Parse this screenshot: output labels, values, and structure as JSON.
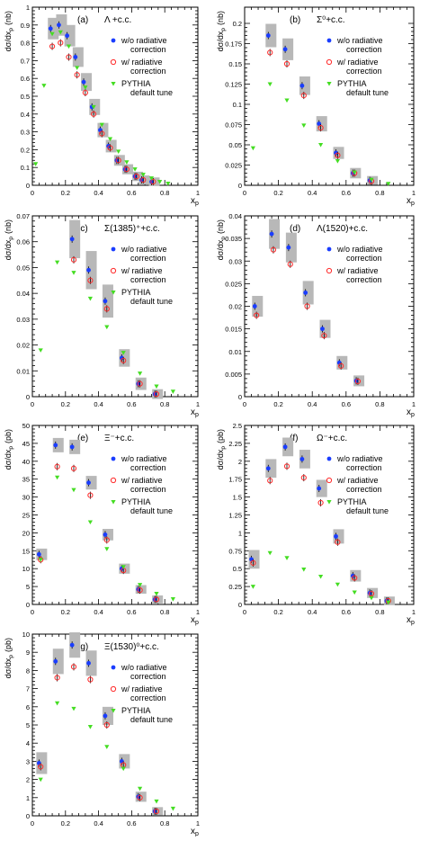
{
  "colors": {
    "without_rad": "#1a3dff",
    "with_rad": "#ff2a2a",
    "pythia": "#44dd22",
    "band": "#b8b8b8"
  },
  "chart_data": [
    {
      "type": "scatter",
      "label": "(a)",
      "title": "Λ +c.c.",
      "ylabel": "dσ/dx",
      "ysub": "p",
      "yunit": "(nb)",
      "xlabel": "x",
      "xsub": "p",
      "xlim": [
        0,
        1
      ],
      "ylim": [
        0,
        1.0
      ],
      "yticks": [
        "0",
        "0.1",
        "0.2",
        "0.3",
        "0.4",
        "0.5",
        "0.6",
        "0.7",
        "0.8",
        "0.9",
        "1"
      ],
      "ytick_values": [
        0,
        0.1,
        0.2,
        0.3,
        0.4,
        0.5,
        0.6,
        0.7,
        0.8,
        0.9,
        1.0
      ],
      "xticks": [
        "0",
        "0.2",
        "0.4",
        "0.6",
        "0.8",
        "1"
      ],
      "xtick_values": [
        0,
        0.2,
        0.4,
        0.6,
        0.8,
        1.0
      ],
      "series": [
        {
          "name": "w/o radiative correction",
          "style": "blue",
          "x": [
            0.11,
            0.16,
            0.21,
            0.26,
            0.31,
            0.36,
            0.41,
            0.46,
            0.51,
            0.56,
            0.62,
            0.66,
            0.72
          ],
          "y": [
            0.88,
            0.9,
            0.84,
            0.72,
            0.58,
            0.44,
            0.31,
            0.22,
            0.14,
            0.09,
            0.05,
            0.03,
            0.02
          ],
          "band": [
            0.04,
            0.04,
            0.04,
            0.035,
            0.03,
            0.025,
            0.02,
            0.015,
            0.01,
            0.008,
            0.006,
            0.005,
            0.004
          ]
        },
        {
          "name": "w/ radiative correction",
          "style": "red",
          "x": [
            0.12,
            0.17,
            0.22,
            0.27,
            0.32,
            0.37,
            0.42,
            0.47,
            0.52,
            0.57,
            0.63,
            0.67,
            0.73
          ],
          "y": [
            0.78,
            0.8,
            0.72,
            0.62,
            0.52,
            0.4,
            0.29,
            0.21,
            0.14,
            0.09,
            0.05,
            0.03,
            0.02
          ]
        },
        {
          "name": "PYTHIA default tune",
          "style": "green",
          "x": [
            0.02,
            0.07,
            0.12,
            0.17,
            0.22,
            0.27,
            0.32,
            0.37,
            0.42,
            0.47,
            0.52,
            0.57,
            0.62,
            0.67,
            0.72,
            0.77,
            0.82
          ],
          "y": [
            0.12,
            0.56,
            0.85,
            0.86,
            0.78,
            0.66,
            0.55,
            0.44,
            0.34,
            0.26,
            0.19,
            0.13,
            0.09,
            0.06,
            0.04,
            0.02,
            0.01
          ]
        }
      ],
      "legend": [
        "w/o radiative",
        "correction",
        "w/ radiative",
        "correction",
        "PYTHIA",
        "default tune"
      ]
    },
    {
      "type": "scatter",
      "label": "(b)",
      "title": "Σ⁰+c.c.",
      "ylabel": "dσ/dx",
      "ysub": "p",
      "yunit": "(nb)",
      "xlabel": "x",
      "xsub": "p",
      "xlim": [
        0,
        1
      ],
      "ylim": [
        0,
        0.22
      ],
      "yticks": [
        "0",
        "0.025",
        "0.05",
        "0.075",
        "0.1",
        "0.125",
        "0.15",
        "0.175",
        "0.2"
      ],
      "ytick_values": [
        0,
        0.025,
        0.05,
        0.075,
        0.1,
        0.125,
        0.15,
        0.175,
        0.2
      ],
      "xticks": [
        "0",
        "0.2",
        "0.4",
        "0.6",
        "0.8",
        "1"
      ],
      "xtick_values": [
        0,
        0.2,
        0.4,
        0.6,
        0.8,
        1.0
      ],
      "series": [
        {
          "name": "w/o radiative correction",
          "style": "blue",
          "x": [
            0.14,
            0.24,
            0.34,
            0.44,
            0.54,
            0.64,
            0.74
          ],
          "y": [
            0.185,
            0.168,
            0.123,
            0.076,
            0.04,
            0.015,
            0.006
          ],
          "band": [
            0.01,
            0.009,
            0.007,
            0.005,
            0.003,
            0.002,
            0.001
          ]
        },
        {
          "name": "w/ radiative correction",
          "style": "red",
          "x": [
            0.15,
            0.25,
            0.35,
            0.45,
            0.55,
            0.65,
            0.75
          ],
          "y": [
            0.164,
            0.15,
            0.111,
            0.071,
            0.037,
            0.015,
            0.005
          ]
        },
        {
          "name": "PYTHIA default tune",
          "style": "green",
          "x": [
            0.05,
            0.15,
            0.25,
            0.35,
            0.45,
            0.55,
            0.65,
            0.75,
            0.85
          ],
          "y": [
            0.046,
            0.125,
            0.105,
            0.074,
            0.05,
            0.03,
            0.016,
            0.007,
            0.002
          ]
        }
      ],
      "legend": [
        "w/o radiative",
        "correction",
        "w/ radiative",
        "correction",
        "PYTHIA",
        "default tune"
      ]
    },
    {
      "type": "scatter",
      "label": "(c)",
      "title": "Σ(1385)⁺+c.c.",
      "ylabel": "dσ/dx",
      "ysub": "p",
      "yunit": "(nb)",
      "xlabel": "x",
      "xsub": "p",
      "xlim": [
        0,
        1
      ],
      "ylim": [
        0,
        0.07
      ],
      "yticks": [
        "0",
        "0.01",
        "0.02",
        "0.03",
        "0.04",
        "0.05",
        "0.06",
        "0.07"
      ],
      "ytick_values": [
        0,
        0.01,
        0.02,
        0.03,
        0.04,
        0.05,
        0.06,
        0.07
      ],
      "xticks": [
        "0",
        "0.2",
        "0.4",
        "0.6",
        "0.8",
        "1"
      ],
      "xtick_values": [
        0,
        0.2,
        0.4,
        0.6,
        0.8,
        1.0
      ],
      "series": [
        {
          "name": "w/o radiative correction",
          "style": "blue",
          "x": [
            0.24,
            0.34,
            0.44,
            0.54,
            0.64,
            0.74
          ],
          "y": [
            0.061,
            0.049,
            0.037,
            0.015,
            0.005,
            0.001
          ],
          "band": [
            0.006,
            0.006,
            0.005,
            0.002,
            0.001,
            0.0005
          ]
        },
        {
          "name": "w/ radiative correction",
          "style": "red",
          "x": [
            0.25,
            0.35,
            0.45,
            0.55,
            0.65,
            0.75
          ],
          "y": [
            0.053,
            0.045,
            0.034,
            0.014,
            0.005,
            0.001
          ]
        },
        {
          "name": "PYTHIA default tune",
          "style": "green",
          "x": [
            0.05,
            0.15,
            0.25,
            0.35,
            0.45,
            0.55,
            0.65,
            0.75,
            0.85
          ],
          "y": [
            0.018,
            0.052,
            0.048,
            0.038,
            0.027,
            0.017,
            0.009,
            0.004,
            0.002
          ]
        }
      ],
      "legend": [
        "w/o radiative",
        "correction",
        "w/ radiative",
        "correction",
        "PYTHIA",
        "default tune"
      ]
    },
    {
      "type": "scatter",
      "label": "(d)",
      "title": "Λ(1520)+c.c.",
      "ylabel": "dσ/dx",
      "ysub": "p",
      "yunit": "(nb)",
      "xlabel": "x",
      "xsub": "p",
      "xlim": [
        0,
        1
      ],
      "ylim": [
        0,
        0.04
      ],
      "yticks": [
        "0",
        "0.005",
        "0.01",
        "0.015",
        "0.02",
        "0.025",
        "0.03",
        "0.035",
        "0.04"
      ],
      "ytick_values": [
        0,
        0.005,
        0.01,
        0.015,
        0.02,
        0.025,
        0.03,
        0.035,
        0.04
      ],
      "xticks": [
        "0",
        "0.2",
        "0.4",
        "0.6",
        "0.8",
        "1"
      ],
      "xtick_values": [
        0,
        0.2,
        0.4,
        0.6,
        0.8,
        1.0
      ],
      "series": [
        {
          "name": "w/o radiative correction",
          "style": "blue",
          "x": [
            0.06,
            0.16,
            0.26,
            0.36,
            0.46,
            0.56,
            0.66
          ],
          "y": [
            0.02,
            0.036,
            0.033,
            0.023,
            0.015,
            0.0075,
            0.0035
          ],
          "band": [
            0.0015,
            0.0025,
            0.0025,
            0.0018,
            0.0012,
            0.0007,
            0.0004
          ]
        },
        {
          "name": "w/ radiative correction",
          "style": "red",
          "x": [
            0.07,
            0.17,
            0.27,
            0.37,
            0.47,
            0.57,
            0.67
          ],
          "y": [
            0.018,
            0.0325,
            0.0293,
            0.02,
            0.0135,
            0.0068,
            0.0034
          ]
        }
      ],
      "legend": [
        "w/o radiative",
        "correction",
        "w/ radiative",
        "correction"
      ]
    },
    {
      "type": "scatter",
      "label": "(e)",
      "title": "Ξ⁻+c.c.",
      "ylabel": "dσ/dx",
      "ysub": "p",
      "yunit": "(pb)",
      "xlabel": "x",
      "xsub": "p",
      "xlim": [
        0,
        1
      ],
      "ylim": [
        0,
        50
      ],
      "yticks": [
        "0",
        "5",
        "10",
        "15",
        "20",
        "25",
        "30",
        "35",
        "40",
        "45",
        "50"
      ],
      "ytick_values": [
        0,
        5,
        10,
        15,
        20,
        25,
        30,
        35,
        40,
        45,
        50
      ],
      "xticks": [
        "0",
        "0.2",
        "0.4",
        "0.6",
        "0.8",
        "1"
      ],
      "xtick_values": [
        0,
        0.2,
        0.4,
        0.6,
        0.8,
        1.0
      ],
      "series": [
        {
          "name": "w/o radiative correction",
          "style": "blue",
          "x": [
            0.04,
            0.14,
            0.24,
            0.34,
            0.44,
            0.54,
            0.64,
            0.74
          ],
          "y": [
            14.0,
            44.5,
            44.0,
            34.0,
            19.5,
            10.0,
            4.2,
            1.4
          ],
          "band": [
            0.6,
            1.0,
            1.0,
            0.9,
            0.6,
            0.4,
            0.2,
            0.1
          ]
        },
        {
          "name": "w/ radiative correction",
          "style": "red",
          "x": [
            0.05,
            0.15,
            0.25,
            0.35,
            0.45,
            0.55,
            0.65,
            0.75
          ],
          "y": [
            12.5,
            38.5,
            38.0,
            30.5,
            18.0,
            9.5,
            4.0,
            1.4
          ]
        },
        {
          "name": "PYTHIA default tune",
          "style": "green",
          "x": [
            0.05,
            0.15,
            0.25,
            0.35,
            0.45,
            0.55,
            0.65,
            0.75,
            0.85
          ],
          "y": [
            12.5,
            35.5,
            32.0,
            23.0,
            15.5,
            10.5,
            5.5,
            3.0,
            1.5
          ]
        }
      ],
      "legend": [
        "w/o radiative",
        "correction",
        "w/ radiative",
        "correction",
        "PYTHIA",
        "default tune"
      ]
    },
    {
      "type": "scatter",
      "label": "(f)",
      "title": "Ω⁻+c.c.",
      "ylabel": "dσ/dx",
      "ysub": "p",
      "yunit": "(pb)",
      "xlabel": "x",
      "xsub": "p",
      "xlim": [
        0,
        1
      ],
      "ylim": [
        0,
        2.5
      ],
      "yticks": [
        "0",
        "0.25",
        "0.5",
        "0.75",
        "1",
        "1.25",
        "1.5",
        "1.75",
        "2",
        "2.25",
        "2.5"
      ],
      "ytick_values": [
        0,
        0.25,
        0.5,
        0.75,
        1.0,
        1.25,
        1.5,
        1.75,
        2.0,
        2.25,
        2.5
      ],
      "xticks": [
        "0",
        "0.2",
        "0.4",
        "0.6",
        "0.8",
        "1"
      ],
      "xtick_values": [
        0,
        0.2,
        0.4,
        0.6,
        0.8,
        1.0
      ],
      "series": [
        {
          "name": "w/o radiative correction",
          "style": "blue",
          "x": [
            0.04,
            0.14,
            0.24,
            0.34,
            0.44,
            0.54,
            0.64,
            0.74,
            0.84
          ],
          "y": [
            0.63,
            1.9,
            2.2,
            2.03,
            1.62,
            0.95,
            0.4,
            0.16,
            0.05
          ],
          "band": [
            0.08,
            0.08,
            0.08,
            0.08,
            0.07,
            0.05,
            0.03,
            0.02,
            0.01
          ]
        },
        {
          "name": "w/ radiative correction",
          "style": "red",
          "x": [
            0.05,
            0.15,
            0.25,
            0.35,
            0.45,
            0.55,
            0.65,
            0.75,
            0.85
          ],
          "y": [
            0.58,
            1.73,
            1.93,
            1.77,
            1.42,
            0.87,
            0.37,
            0.15,
            0.05
          ]
        },
        {
          "name": "PYTHIA default tune",
          "style": "green",
          "x": [
            0.05,
            0.15,
            0.25,
            0.35,
            0.45,
            0.55,
            0.65,
            0.75,
            0.85
          ],
          "y": [
            0.25,
            0.72,
            0.65,
            0.49,
            0.39,
            0.28,
            0.17,
            0.09,
            0.03
          ]
        }
      ],
      "legend": [
        "w/o radiative",
        "correction",
        "w/ radiative",
        "correction",
        "PYTHIA",
        "default tune"
      ]
    },
    {
      "type": "scatter",
      "label": "(g)",
      "title": "Ξ(1530)⁰+c.c.",
      "ylabel": "dσ/dx",
      "ysub": "p",
      "yunit": "(pb)",
      "xlabel": "x",
      "xsub": "p",
      "xlim": [
        0,
        1
      ],
      "ylim": [
        0,
        10
      ],
      "yticks": [
        "0",
        "1",
        "2",
        "3",
        "4",
        "5",
        "6",
        "7",
        "8",
        "9",
        "10"
      ],
      "ytick_values": [
        0,
        1,
        2,
        3,
        4,
        5,
        6,
        7,
        8,
        9,
        10
      ],
      "xticks": [
        "0",
        "0.2",
        "0.4",
        "0.6",
        "0.8",
        "1"
      ],
      "xtick_values": [
        0,
        0.2,
        0.4,
        0.6,
        0.8,
        1.0
      ],
      "series": [
        {
          "name": "w/o radiative correction",
          "style": "blue",
          "x": [
            0.04,
            0.14,
            0.24,
            0.34,
            0.44,
            0.54,
            0.64,
            0.74
          ],
          "y": [
            2.9,
            8.5,
            9.4,
            8.4,
            5.5,
            3.0,
            1.05,
            0.25
          ],
          "band": [
            0.4,
            0.5,
            0.5,
            0.5,
            0.3,
            0.2,
            0.08,
            0.03
          ]
        },
        {
          "name": "w/ radiative correction",
          "style": "red",
          "x": [
            0.05,
            0.15,
            0.25,
            0.35,
            0.45,
            0.55,
            0.65,
            0.75
          ],
          "y": [
            2.7,
            7.6,
            8.2,
            7.5,
            5.0,
            2.8,
            1.0,
            0.25
          ]
        },
        {
          "name": "PYTHIA default tune",
          "style": "green",
          "x": [
            0.05,
            0.15,
            0.25,
            0.35,
            0.45,
            0.55,
            0.65,
            0.75,
            0.85
          ],
          "y": [
            2.0,
            6.2,
            5.9,
            4.9,
            3.8,
            2.6,
            1.5,
            0.8,
            0.4
          ]
        }
      ],
      "legend": [
        "w/o radiative",
        "correction",
        "w/ radiative",
        "correction",
        "PYTHIA",
        "default tune"
      ]
    }
  ]
}
